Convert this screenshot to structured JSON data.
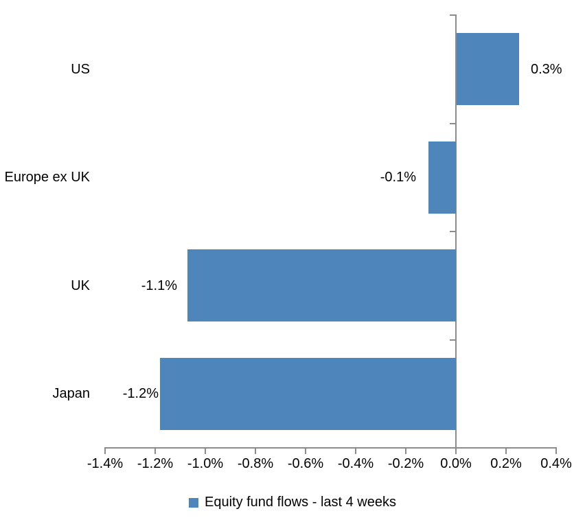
{
  "chart_data": {
    "type": "bar",
    "orientation": "horizontal",
    "title": "",
    "categories": [
      "US",
      "Europe ex UK",
      "UK",
      "Japan"
    ],
    "values": [
      0.3,
      -0.1,
      -1.1,
      -1.2
    ],
    "value_labels": [
      "0.3%",
      "-0.1%",
      "-1.1%",
      "-1.2%"
    ],
    "plotted_values": [
      0.25,
      -0.11,
      -1.07,
      -1.18
    ],
    "series": [
      {
        "name": "Equity fund flows - last 4 weeks",
        "values": [
          0.3,
          -0.1,
          -1.1,
          -1.2
        ]
      }
    ],
    "xlabel": "",
    "ylabel": "",
    "xlim": [
      -1.4,
      0.4
    ],
    "x_tick_step": 0.2,
    "x_tick_labels": [
      "-1.4%",
      "-1.2%",
      "-1.0%",
      "-0.8%",
      "-0.6%",
      "-0.4%",
      "-0.2%",
      "0.0%",
      "0.2%",
      "0.4%"
    ],
    "grid": false,
    "legend_position": "bottom",
    "colors": {
      "bar": "#4E86BC",
      "axis": "#8C8C8C",
      "text": "#000000",
      "background": "#FFFFFF"
    }
  },
  "legend": {
    "label": "Equity fund flows - last 4 weeks"
  }
}
